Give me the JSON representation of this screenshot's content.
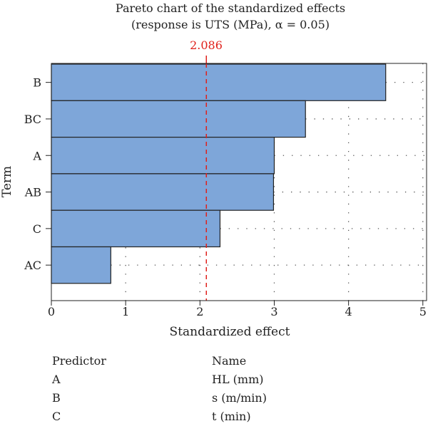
{
  "chart_data": {
    "type": "bar",
    "orientation": "horizontal",
    "title": "Pareto chart of the standardized effects",
    "subtitle": "(response is UTS (MPa), α = 0.05)",
    "xlabel": "Standardized effect",
    "ylabel": "Term",
    "categories": [
      "B",
      "BC",
      "A",
      "AB",
      "C",
      "AC"
    ],
    "values": [
      4.5,
      3.42,
      3.0,
      2.99,
      2.27,
      0.8
    ],
    "xlim": [
      0,
      5.05
    ],
    "xticks": [
      0,
      1,
      2,
      3,
      4,
      5
    ],
    "xtick_labels": [
      "0",
      "1",
      "2",
      "3",
      "4",
      "5"
    ],
    "reference_line": {
      "value": 2.086,
      "label": "2.086",
      "color": "#e0201b"
    },
    "bar_color": "#7ea6d9",
    "grid": "dotted"
  },
  "legend_table": {
    "headers": [
      "Predictor",
      "Name"
    ],
    "rows": [
      [
        "A",
        "HL (mm)"
      ],
      [
        "B",
        "s (m/min)"
      ],
      [
        "C",
        "t (min)"
      ]
    ]
  }
}
